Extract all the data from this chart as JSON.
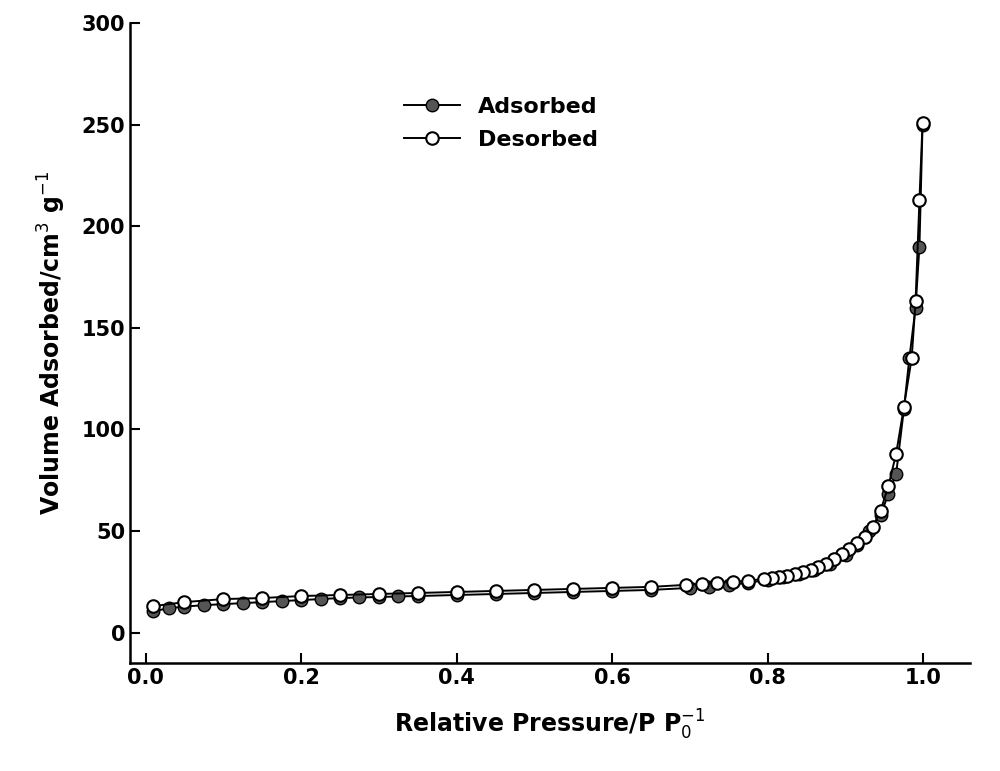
{
  "adsorbed_x": [
    0.01,
    0.03,
    0.05,
    0.075,
    0.1,
    0.125,
    0.15,
    0.175,
    0.2,
    0.225,
    0.25,
    0.275,
    0.3,
    0.325,
    0.35,
    0.4,
    0.45,
    0.5,
    0.55,
    0.6,
    0.65,
    0.7,
    0.725,
    0.75,
    0.775,
    0.8,
    0.82,
    0.84,
    0.86,
    0.88,
    0.9,
    0.915,
    0.93,
    0.945,
    0.955,
    0.965,
    0.975,
    0.982,
    0.99,
    0.995,
    0.999
  ],
  "adsorbed_y": [
    10.5,
    12.0,
    12.8,
    13.5,
    14.0,
    14.5,
    15.0,
    15.5,
    16.0,
    16.5,
    17.0,
    17.3,
    17.5,
    17.8,
    18.0,
    18.5,
    19.0,
    19.5,
    20.0,
    20.5,
    21.0,
    22.0,
    22.5,
    23.5,
    24.5,
    26.0,
    27.5,
    29.0,
    31.0,
    34.0,
    38.0,
    43.0,
    50.0,
    58.0,
    68.0,
    78.0,
    110.0,
    135.0,
    160.0,
    190.0,
    250.0
  ],
  "desorbed_x": [
    0.999,
    0.995,
    0.99,
    0.985,
    0.975,
    0.965,
    0.955,
    0.945,
    0.935,
    0.925,
    0.915,
    0.905,
    0.895,
    0.885,
    0.875,
    0.865,
    0.855,
    0.845,
    0.835,
    0.825,
    0.815,
    0.805,
    0.795,
    0.775,
    0.755,
    0.735,
    0.715,
    0.695,
    0.65,
    0.6,
    0.55,
    0.5,
    0.45,
    0.4,
    0.35,
    0.3,
    0.25,
    0.2,
    0.15,
    0.1,
    0.05,
    0.01
  ],
  "desorbed_y": [
    251.0,
    213.0,
    163.0,
    135.0,
    111.0,
    88.0,
    72.0,
    60.0,
    52.0,
    47.0,
    44.0,
    41.0,
    38.5,
    36.0,
    34.0,
    32.5,
    31.0,
    30.0,
    29.0,
    28.0,
    27.5,
    27.0,
    26.5,
    25.5,
    25.0,
    24.5,
    24.0,
    23.5,
    22.5,
    22.0,
    21.5,
    21.0,
    20.5,
    20.0,
    19.5,
    19.0,
    18.5,
    18.0,
    17.0,
    16.5,
    15.0,
    13.0
  ],
  "xlabel": "Relative Pressure/P P$_0^{-1}$",
  "ylabel": "Volume Adsorbed/cm$^3$ g$^{-1}$",
  "xlim": [
    -0.02,
    1.06
  ],
  "ylim": [
    -15,
    300
  ],
  "yticks": [
    0,
    50,
    100,
    150,
    200,
    250,
    300
  ],
  "xticks": [
    0.0,
    0.2,
    0.4,
    0.6,
    0.8,
    1.0
  ],
  "legend_adsorbed": "Adsorbed",
  "legend_desorbed": "Desorbed",
  "line_color": "#000000",
  "adsorbed_marker_color": "#555555",
  "desorbed_marker_color": "#ffffff",
  "marker_size": 9,
  "linewidth": 1.4,
  "background_color": "#ffffff",
  "label_fontsize": 17,
  "tick_fontsize": 15,
  "legend_fontsize": 16
}
